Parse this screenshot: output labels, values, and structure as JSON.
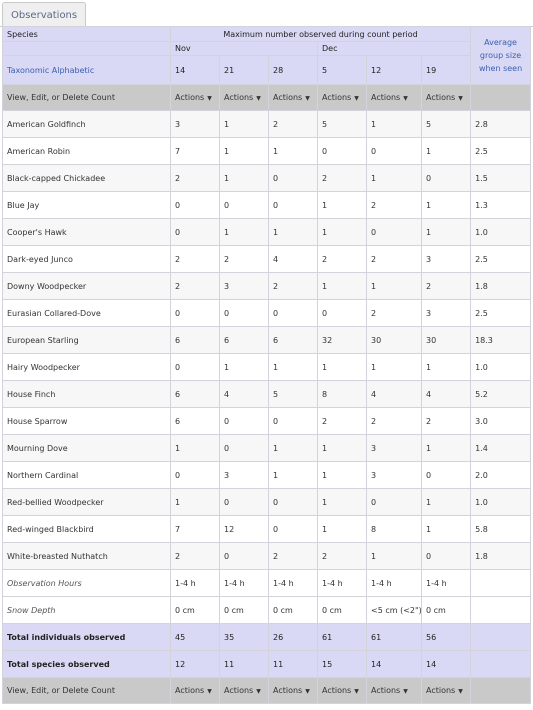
{
  "tab": {
    "label": "Observations"
  },
  "header": {
    "species_label": "Species",
    "period_title": "Maximum number observed during count period",
    "sort_link": "Taxonomic Alphabetic",
    "average_label": "Average group size when seen",
    "months": [
      "Nov",
      "Dec"
    ],
    "dates": [
      "14",
      "21",
      "28",
      "5",
      "12",
      "19"
    ]
  },
  "actions_row": {
    "label": "View, Edit, or Delete Count",
    "actions": [
      "Actions",
      "Actions",
      "Actions",
      "Actions",
      "Actions",
      "Actions"
    ]
  },
  "species": [
    {
      "name": "American Goldfinch",
      "counts": [
        "3",
        "1",
        "2",
        "5",
        "1",
        "5"
      ],
      "avg": "2.8"
    },
    {
      "name": "American Robin",
      "counts": [
        "7",
        "1",
        "1",
        "0",
        "0",
        "1"
      ],
      "avg": "2.5"
    },
    {
      "name": "Black-capped Chickadee",
      "counts": [
        "2",
        "1",
        "0",
        "2",
        "1",
        "0"
      ],
      "avg": "1.5"
    },
    {
      "name": "Blue Jay",
      "counts": [
        "0",
        "0",
        "0",
        "1",
        "2",
        "1"
      ],
      "avg": "1.3"
    },
    {
      "name": "Cooper's Hawk",
      "counts": [
        "0",
        "1",
        "1",
        "1",
        "0",
        "1"
      ],
      "avg": "1.0"
    },
    {
      "name": "Dark-eyed Junco",
      "counts": [
        "2",
        "2",
        "4",
        "2",
        "2",
        "3"
      ],
      "avg": "2.5"
    },
    {
      "name": "Downy Woodpecker",
      "counts": [
        "2",
        "3",
        "2",
        "1",
        "1",
        "2"
      ],
      "avg": "1.8"
    },
    {
      "name": "Eurasian Collared-Dove",
      "counts": [
        "0",
        "0",
        "0",
        "0",
        "2",
        "3"
      ],
      "avg": "2.5"
    },
    {
      "name": "European Starling",
      "counts": [
        "6",
        "6",
        "6",
        "32",
        "30",
        "30"
      ],
      "avg": "18.3"
    },
    {
      "name": "Hairy Woodpecker",
      "counts": [
        "0",
        "1",
        "1",
        "1",
        "1",
        "1"
      ],
      "avg": "1.0"
    },
    {
      "name": "House Finch",
      "counts": [
        "6",
        "4",
        "5",
        "8",
        "4",
        "4"
      ],
      "avg": "5.2"
    },
    {
      "name": "House Sparrow",
      "counts": [
        "6",
        "0",
        "0",
        "2",
        "2",
        "2"
      ],
      "avg": "3.0"
    },
    {
      "name": "Mourning Dove",
      "counts": [
        "1",
        "0",
        "1",
        "1",
        "3",
        "1"
      ],
      "avg": "1.4"
    },
    {
      "name": "Northern Cardinal",
      "counts": [
        "0",
        "3",
        "1",
        "1",
        "3",
        "0"
      ],
      "avg": "2.0"
    },
    {
      "name": "Red-bellied Woodpecker",
      "counts": [
        "1",
        "0",
        "0",
        "1",
        "0",
        "1"
      ],
      "avg": "1.0"
    },
    {
      "name": "Red-winged Blackbird",
      "counts": [
        "7",
        "12",
        "0",
        "1",
        "8",
        "1"
      ],
      "avg": "5.8"
    },
    {
      "name": "White-breasted Nuthatch",
      "counts": [
        "2",
        "0",
        "2",
        "2",
        "1",
        "0"
      ],
      "avg": "1.8"
    }
  ],
  "observation_hours": {
    "label": "Observation Hours",
    "values": [
      "1-4 h",
      "1-4 h",
      "1-4 h",
      "1-4 h",
      "1-4 h",
      "1-4 h"
    ]
  },
  "snow_depth": {
    "label": "Snow Depth",
    "values": [
      "0 cm",
      "0 cm",
      "0 cm",
      "0 cm",
      "<5 cm (<2\")",
      "0 cm"
    ]
  },
  "total_individuals": {
    "label": "Total individuals observed",
    "values": [
      "45",
      "35",
      "26",
      "61",
      "61",
      "56"
    ]
  },
  "total_species": {
    "label": "Total species observed",
    "values": [
      "12",
      "11",
      "11",
      "15",
      "14",
      "14"
    ]
  },
  "colors": {
    "header_bg": "#d9d9f5",
    "action_bg": "#c9c9c9",
    "link": "#3b5fb0"
  }
}
